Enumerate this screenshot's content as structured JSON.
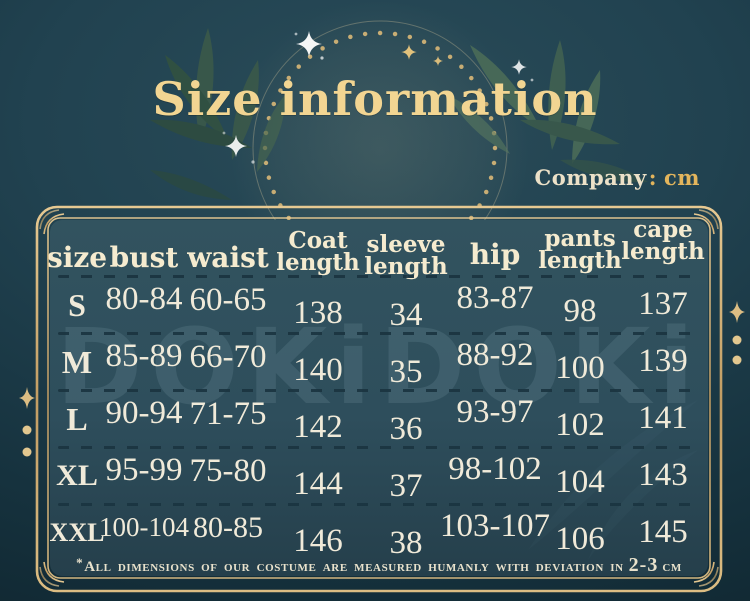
{
  "title": "Size information",
  "company": {
    "label": "Company",
    "colon": ":",
    "unit": "cm"
  },
  "watermark": "DOKiDOKi",
  "table": {
    "headers": [
      {
        "line1": "size",
        "line2": ""
      },
      {
        "line1": "bust",
        "line2": ""
      },
      {
        "line1": "waist",
        "line2": ""
      },
      {
        "line1": "Coat",
        "line2": "length"
      },
      {
        "line1": "sleeve",
        "line2": "length"
      },
      {
        "line1": "hip",
        "line2": ""
      },
      {
        "line1": "pants",
        "line2": "length"
      },
      {
        "line1": "cape",
        "line2": "length"
      }
    ],
    "rows": [
      {
        "cells": [
          "S",
          "80-84",
          "60-65",
          "138",
          "34",
          "83-87",
          "98",
          "137"
        ]
      },
      {
        "cells": [
          "M",
          "85-89",
          "66-70",
          "140",
          "35",
          "88-92",
          "100",
          "139"
        ]
      },
      {
        "cells": [
          "L",
          "90-94",
          "71-75",
          "142",
          "36",
          "93-97",
          "102",
          "141"
        ]
      },
      {
        "cells": [
          "XL",
          "95-99",
          "75-80",
          "144",
          "37",
          "98-102",
          "104",
          "143"
        ]
      },
      {
        "cells": [
          "XXL",
          "100-104",
          "80-85",
          "146",
          "38",
          "103-107",
          "106",
          "145"
        ]
      }
    ]
  },
  "footer": {
    "star": "*",
    "text": "All dimensions of our costume are measured humanly with deviation in",
    "emphasis": "2-3",
    "unit": "cm"
  },
  "colors": {
    "background": "#1e3c48",
    "panel": "#2e4e5c",
    "gold_border": "#c9a56b",
    "title_gold": "#f2d592",
    "header_cream": "#f5ebcf",
    "value_cream": "#f0ead9",
    "company_gold": "#e3b55c",
    "dash": "#1a3440"
  },
  "chart_data": {
    "type": "table",
    "title": "Size information",
    "unit": "cm",
    "columns": [
      "size",
      "bust",
      "waist",
      "Coat length",
      "sleeve length",
      "hip",
      "pants length",
      "cape length"
    ],
    "rows": [
      [
        "S",
        "80-84",
        "60-65",
        138,
        34,
        "83-87",
        98,
        137
      ],
      [
        "M",
        "85-89",
        "66-70",
        140,
        35,
        "88-92",
        100,
        139
      ],
      [
        "L",
        "90-94",
        "71-75",
        142,
        36,
        "93-97",
        102,
        141
      ],
      [
        "XL",
        "95-99",
        "75-80",
        144,
        37,
        "98-102",
        104,
        143
      ],
      [
        "XXL",
        "100-104",
        "80-85",
        146,
        38,
        "103-107",
        106,
        145
      ]
    ],
    "note": "*All dimensions of our costume are measured humanly with deviation in 2-3 cm"
  }
}
